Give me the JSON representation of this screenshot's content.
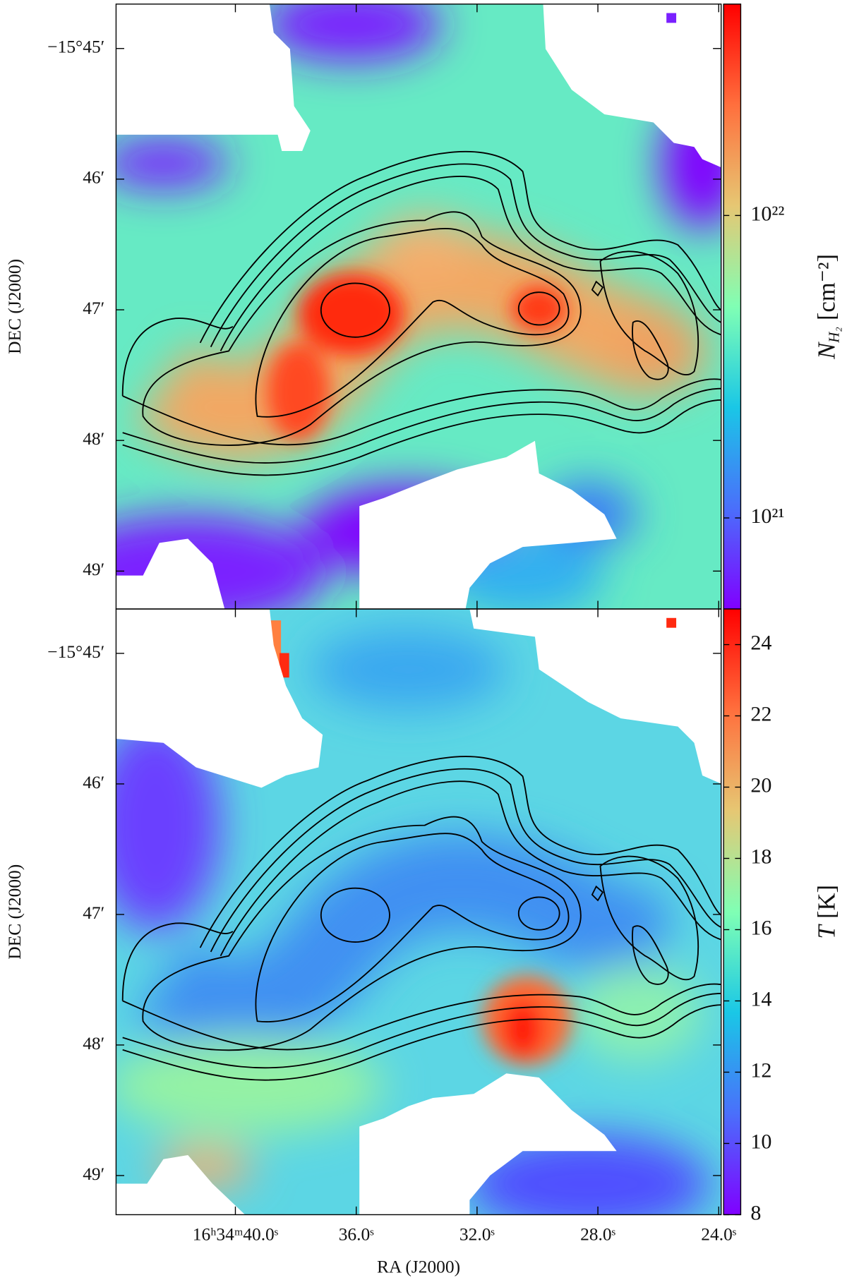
{
  "chart_data": [
    {
      "type": "heatmap",
      "ylabel": "DEC (J2000)",
      "xlim": [
        43.95,
        23.92
      ],
      "xticks": [
        40,
        36,
        32,
        28,
        24
      ],
      "ylim": [
        -949.29,
        -944.66
      ],
      "yticks": [
        {
          "value": -945,
          "label": "−15°45′"
        },
        {
          "value": -946,
          "label": "46′"
        },
        {
          "value": -947,
          "label": "47′"
        },
        {
          "value": -948,
          "label": "48′"
        },
        {
          "value": -949,
          "label": "49′"
        }
      ],
      "colorbar": {
        "colormap": "rainbow",
        "scale": "log",
        "lim": [
          5e+20,
          5e+22
        ],
        "ticks": [
          {
            "value": 1e+21,
            "label": "10²¹"
          },
          {
            "value": 1e+22,
            "label": "10²²"
          }
        ],
        "label_symbol": "N",
        "label_subscript": "H₂",
        "label_unit": "[cm⁻²]"
      }
    },
    {
      "type": "heatmap",
      "ylabel": "DEC (J2000)",
      "xlabel": "RA (J2000)",
      "xlim": [
        43.95,
        23.92
      ],
      "xticks": [
        {
          "value": 40,
          "label": "16ʰ34ᵐ40.0ˢ"
        },
        {
          "value": 36,
          "label": "36.0ˢ"
        },
        {
          "value": 32,
          "label": "32.0ˢ"
        },
        {
          "value": 28,
          "label": "28.0ˢ"
        },
        {
          "value": 24,
          "label": "24.0ˢ"
        }
      ],
      "ylim": [
        -949.3,
        -944.66
      ],
      "yticks": [
        {
          "value": -945,
          "label": "−15°45′"
        },
        {
          "value": -946,
          "label": "46′"
        },
        {
          "value": -947,
          "label": "47′"
        },
        {
          "value": -948,
          "label": "48′"
        },
        {
          "value": -949,
          "label": "49′"
        }
      ],
      "colorbar": {
        "colormap": "rainbow",
        "scale": "linear",
        "lim": [
          8,
          25
        ],
        "ticks": [
          8,
          10,
          12,
          14,
          16,
          18,
          20,
          22,
          24
        ],
        "label_symbol": "T",
        "label_unit": "[K]"
      }
    }
  ]
}
